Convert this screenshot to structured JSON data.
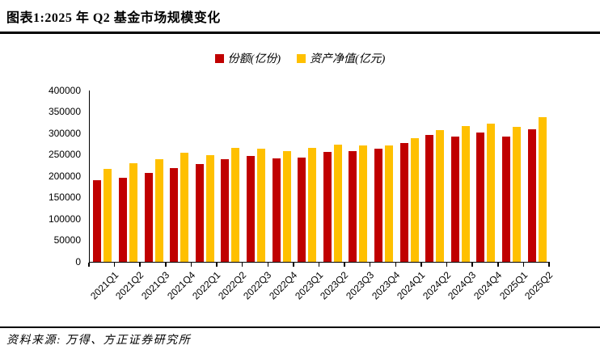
{
  "header": {
    "title": "图表1:2025 年 Q2 基金市场规模变化"
  },
  "chart_data": {
    "type": "bar",
    "title": "2025 年 Q2 基金市场规模变化",
    "categories": [
      "2021Q1",
      "2021Q2",
      "2021Q3",
      "2021Q4",
      "2022Q1",
      "2022Q2",
      "2022Q3",
      "2022Q4",
      "2023Q1",
      "2023Q2",
      "2023Q3",
      "2023Q4",
      "2024Q1",
      "2024Q2",
      "2024Q3",
      "2024Q4",
      "2025Q1",
      "2025Q2"
    ],
    "series": [
      {
        "name": "份额(亿份)",
        "color": "#C00000",
        "values": [
          191000,
          196000,
          207000,
          219000,
          229000,
          239000,
          247000,
          241000,
          244000,
          257000,
          259000,
          264000,
          278000,
          297000,
          293000,
          302000,
          293000,
          309000
        ]
      },
      {
        "name": "资产净值(亿元)",
        "color": "#FFC000",
        "values": [
          217000,
          231000,
          239000,
          255000,
          250000,
          267000,
          265000,
          258000,
          267000,
          273000,
          271000,
          272000,
          289000,
          308000,
          317000,
          323000,
          315000,
          337000
        ]
      }
    ],
    "xlabel": "",
    "ylabel": "",
    "ylim": [
      0,
      400000
    ],
    "yticks": [
      0,
      50000,
      100000,
      150000,
      200000,
      250000,
      300000,
      350000,
      400000
    ],
    "grid": false,
    "legend_position": "top-center"
  },
  "footer": {
    "source": "资料来源: 万得、方正证券研究所"
  }
}
